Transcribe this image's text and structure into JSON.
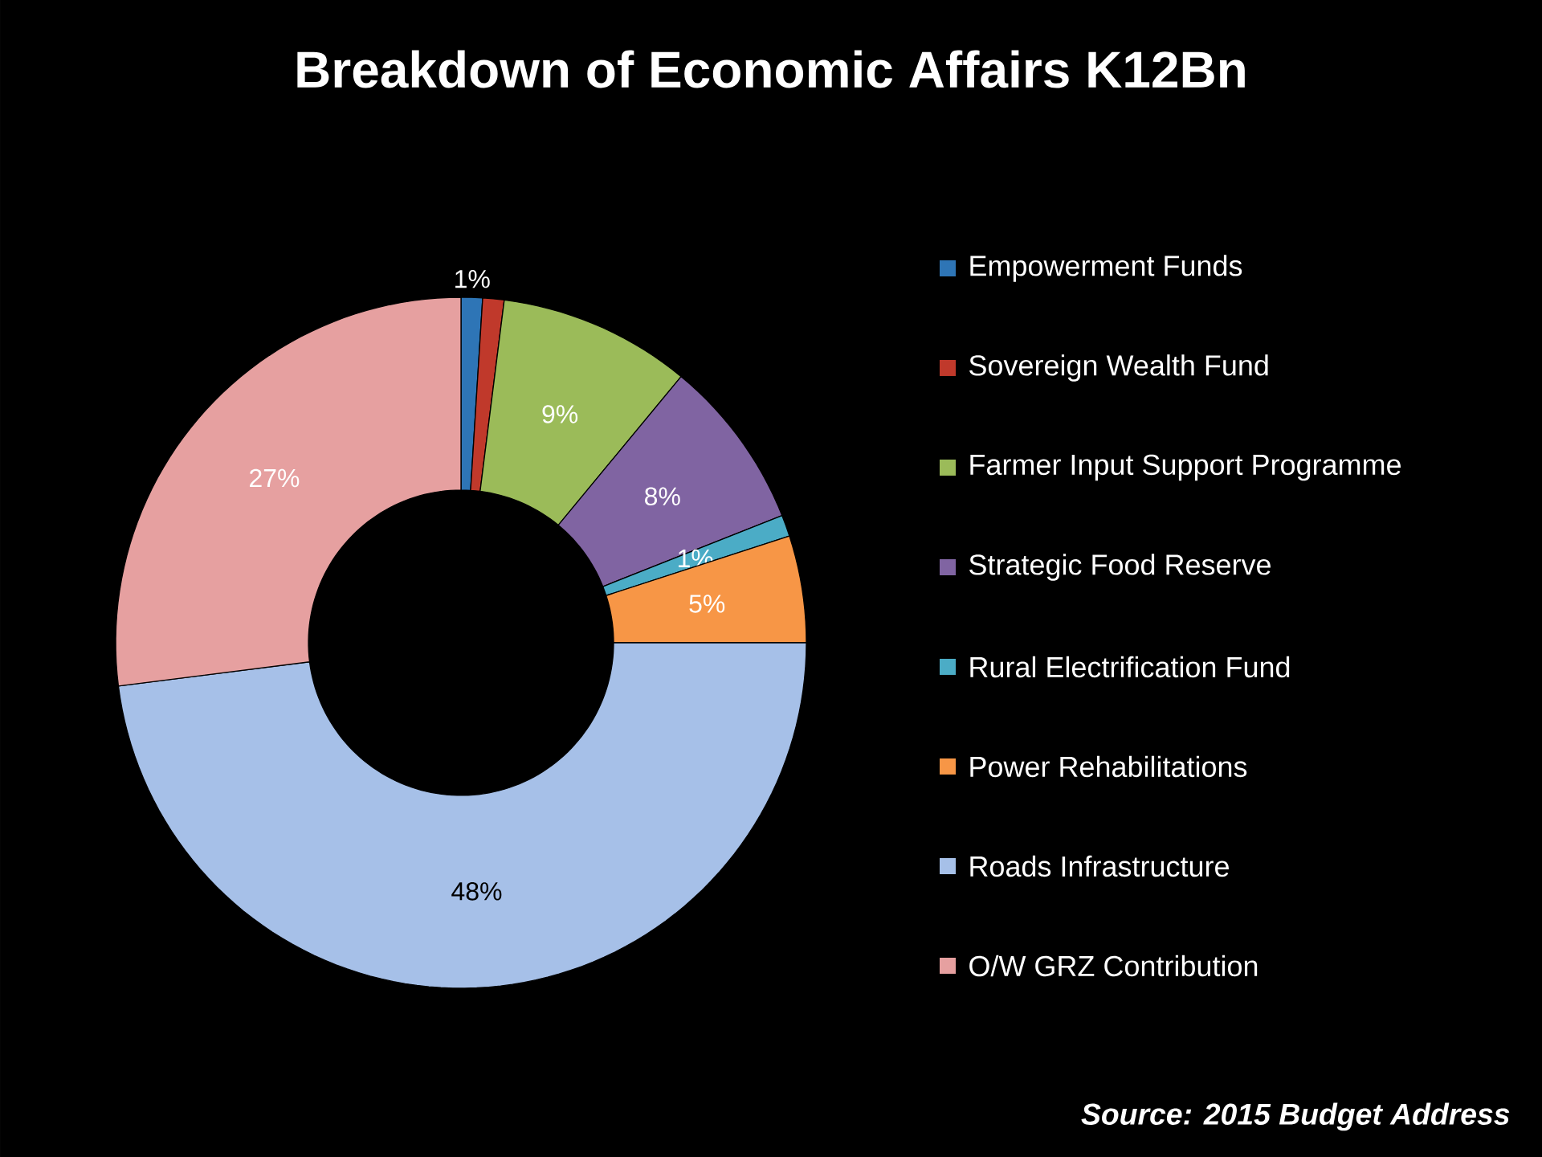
{
  "chart_data": {
    "type": "donut",
    "title": "Breakdown of Economic Affairs K12Bn",
    "categories": [
      "Empowerment Funds",
      "Sovereign Wealth Fund",
      "Farmer Input Support Programme",
      "Strategic Food Reserve",
      "Rural Electrification Fund",
      "Power Rehabilitations",
      "Roads Infrastructure",
      "O/W GRZ Contribution"
    ],
    "values": [
      1,
      1,
      9,
      8,
      1,
      5,
      48,
      27
    ],
    "value_labels": [
      "1%",
      null,
      "9%",
      "8%",
      "1%",
      "5%",
      "48%",
      "27%"
    ],
    "colors": [
      "#2e75b6",
      "#c0392b",
      "#9bbb59",
      "#8064a2",
      "#4bacc6",
      "#f79646",
      "#a6c0e8",
      "#e6a0a0"
    ],
    "legend": "right",
    "annotations": [
      "Source: 2015 Budget Address"
    ]
  }
}
